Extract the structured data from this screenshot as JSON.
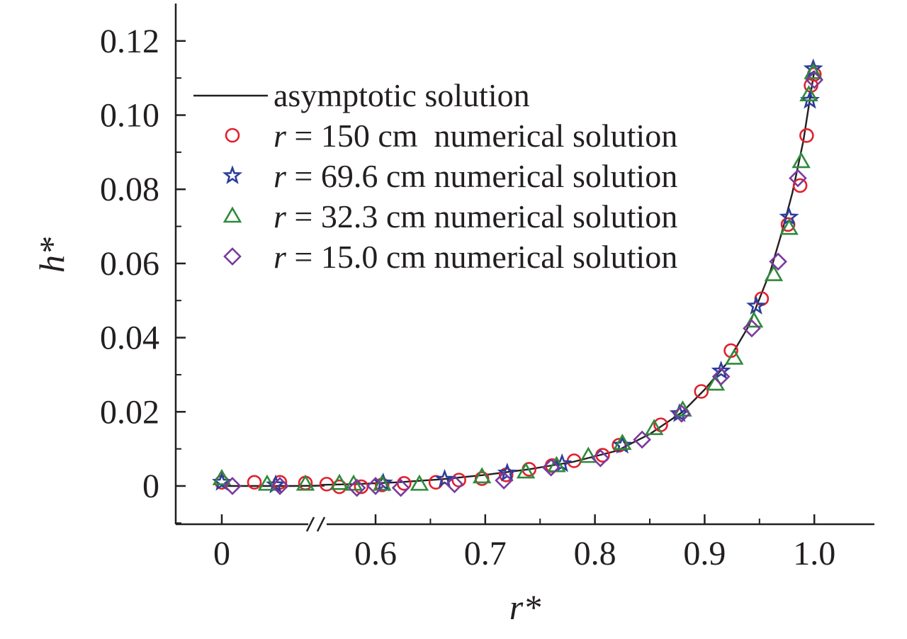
{
  "chart_data": {
    "type": "scatter",
    "xlabel": "r*",
    "ylabel": "h*",
    "xlim": [
      0.0,
      1.0
    ],
    "ylim": [
      -0.01,
      0.13
    ],
    "x_axis_break": [
      0.0,
      0.55
    ],
    "x_ticks": [
      {
        "value": 0.0,
        "label": "0"
      },
      {
        "value": 0.6,
        "label": "0.6"
      },
      {
        "value": 0.7,
        "label": "0.7"
      },
      {
        "value": 0.8,
        "label": "0.8"
      },
      {
        "value": 0.9,
        "label": "0.9"
      },
      {
        "value": 1.0,
        "label": "1.0"
      }
    ],
    "y_ticks": [
      {
        "value": 0.0,
        "label": "0"
      },
      {
        "value": 0.02,
        "label": "0.02"
      },
      {
        "value": 0.04,
        "label": "0.04"
      },
      {
        "value": 0.06,
        "label": "0.06"
      },
      {
        "value": 0.08,
        "label": "0.08"
      },
      {
        "value": 0.1,
        "label": "0.10"
      },
      {
        "value": 0.12,
        "label": "0.12"
      }
    ],
    "grid": false,
    "legend_position": "top-left",
    "legend": [
      {
        "italic": "",
        "text": "asymptotic solution",
        "marker": "line",
        "color": "#231f20"
      },
      {
        "italic": "r",
        "text": " = 150 cm  numerical solution",
        "marker": "circle",
        "color": "#e2202c"
      },
      {
        "italic": "r",
        "text": " = 69.6 cm numerical solution",
        "marker": "star",
        "color": "#2b3e9c"
      },
      {
        "italic": "r",
        "text": " = 32.3 cm numerical solution",
        "marker": "triangle",
        "color": "#2f8a3c"
      },
      {
        "italic": "r",
        "text": " = 15.0 cm numerical solution",
        "marker": "diamond",
        "color": "#7a3a9c"
      }
    ],
    "series": [
      {
        "marker": "line",
        "color": "#231f20",
        "x": [
          0.0,
          0.15,
          0.3,
          0.45,
          0.55,
          0.58,
          0.62,
          0.66,
          0.7,
          0.74,
          0.78,
          0.82,
          0.85,
          0.88,
          0.9,
          0.92,
          0.94,
          0.96,
          0.97,
          0.98,
          0.99,
          1.0
        ],
        "y": [
          0.0,
          0.0,
          0.0,
          0.0001,
          0.0003,
          0.0005,
          0.001,
          0.0018,
          0.003,
          0.0045,
          0.0065,
          0.0095,
          0.014,
          0.02,
          0.026,
          0.033,
          0.043,
          0.058,
          0.068,
          0.079,
          0.093,
          0.112
        ]
      },
      {
        "marker": "circle",
        "color": "#e2202c",
        "x": [
          0.0,
          0.12,
          0.24,
          0.36,
          0.46,
          0.567,
          0.587,
          0.606,
          0.626,
          0.655,
          0.676,
          0.697,
          0.719,
          0.74,
          0.761,
          0.781,
          0.807,
          0.822,
          0.86,
          0.897,
          0.924,
          0.952,
          0.976,
          0.987,
          0.993,
          0.997,
          1.0
        ],
        "y": [
          0.001,
          0.001,
          0.001,
          0.0008,
          0.0005,
          -0.0002,
          -0.0002,
          0.0003,
          0.0007,
          0.001,
          0.0016,
          0.002,
          0.003,
          0.0045,
          0.0055,
          0.0068,
          0.0083,
          0.011,
          0.0165,
          0.0255,
          0.0365,
          0.0505,
          0.0705,
          0.081,
          0.0945,
          0.108,
          0.111
        ]
      },
      {
        "marker": "star",
        "color": "#2b3e9c",
        "x": [
          0.0,
          0.22,
          0.607,
          0.663,
          0.72,
          0.77,
          0.825,
          0.877,
          0.915,
          0.947,
          0.977,
          0.996,
          0.999
        ],
        "y": [
          0.001,
          0.0003,
          0.0008,
          0.0018,
          0.0035,
          0.006,
          0.011,
          0.0195,
          0.031,
          0.0485,
          0.0725,
          0.104,
          0.1125
        ]
      },
      {
        "marker": "triangle",
        "color": "#2f8a3c",
        "x": [
          0.0,
          0.18,
          0.36,
          0.52,
          0.58,
          0.606,
          0.64,
          0.697,
          0.737,
          0.765,
          0.794,
          0.825,
          0.854,
          0.88,
          0.91,
          0.927,
          0.945,
          0.963,
          0.977,
          0.988,
          0.995,
          0.999
        ],
        "y": [
          0.002,
          0.0005,
          0.0005,
          0.0007,
          0.0005,
          0.0005,
          0.0005,
          0.0025,
          0.0038,
          0.0055,
          0.008,
          0.0115,
          0.0155,
          0.0205,
          0.0275,
          0.0345,
          0.0445,
          0.057,
          0.0695,
          0.0875,
          0.1055,
          0.1115
        ]
      },
      {
        "marker": "diamond",
        "color": "#7a3a9c",
        "x": [
          0.03,
          0.24,
          0.6,
          0.583,
          0.623,
          0.672,
          0.717,
          0.76,
          0.805,
          0.843,
          0.879,
          0.915,
          0.943,
          0.967,
          0.985,
          1.0
        ],
        "y": [
          0.0,
          0.0,
          0.0,
          -0.0005,
          -0.0005,
          0.0005,
          0.0015,
          0.005,
          0.0075,
          0.0125,
          0.0195,
          0.0295,
          0.0425,
          0.0605,
          0.083,
          0.1095
        ]
      }
    ]
  }
}
